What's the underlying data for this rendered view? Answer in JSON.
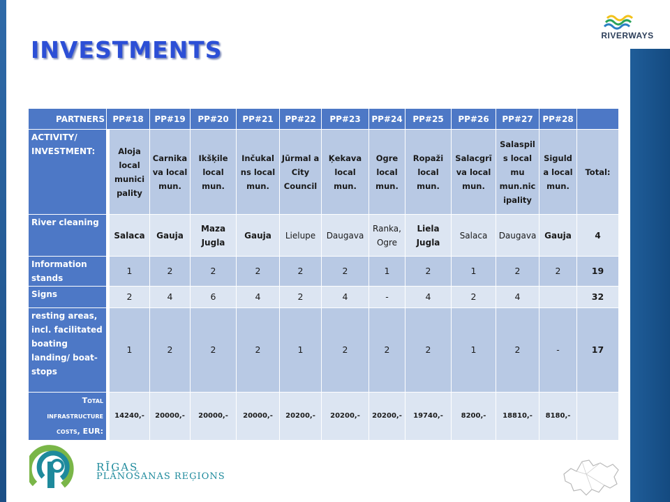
{
  "title": "INVESTMENTS",
  "brand_logo": {
    "icon": "riverways-wave-icon",
    "text": "RIVERWAYS"
  },
  "table": {
    "header": {
      "label": "PARTNERS",
      "partners": [
        "PP#18",
        "PP#19",
        "PP#20",
        "PP#21",
        "PP#22",
        "PP#23",
        "PP#24",
        "PP#25",
        "PP#26",
        "PP#27",
        "PP#28"
      ]
    },
    "activity": {
      "label": "ACTIVITY/ INVESTMENT:",
      "values": [
        "Aloja local munici pality",
        "Carnika va local mun.",
        "Ikšķile local mun.",
        "Inčukal ns local mun.",
        "Jūrmal a City Council",
        "Ķekava local mun.",
        "Ogre local mun.",
        "Ropaži local mun.",
        "Salacgrī va local mun.",
        "Salaspil s local mu mun.nic ipality",
        "Siguld a local mun."
      ],
      "total_label": "Total:"
    },
    "river_cleaning": {
      "label": "River cleaning",
      "values": [
        "Salaca",
        "Gauja",
        "Maza Jugla",
        "Gauja",
        "Lielupe",
        "Daugava",
        "Ranka, Ogre",
        "Liela Jugla",
        "Salaca",
        "Daugava",
        "Gauja"
      ],
      "total": "4"
    },
    "info_stands": {
      "label": "Information stands",
      "values": [
        "1",
        "2",
        "2",
        "2",
        "2",
        "2",
        "1",
        "2",
        "1",
        "2",
        "2"
      ],
      "total": "19"
    },
    "signs": {
      "label": "Signs",
      "values": [
        "2",
        "4",
        "6",
        "4",
        "2",
        "4",
        "-",
        "4",
        "2",
        "4",
        ""
      ],
      "total": "32"
    },
    "resting_areas": {
      "label": "resting areas, incl. facilitated boating landing/ boat-stops",
      "values": [
        "1",
        "2",
        "2",
        "2",
        "1",
        "2",
        "2",
        "2",
        "1",
        "2",
        "-"
      ],
      "total": "17"
    },
    "total_costs": {
      "label_main": "Total infrastructure costs",
      "label_suffix": ", EUR:",
      "values": [
        "14240,-",
        "20000,-",
        "20000,-",
        "20000,-",
        "20200,-",
        "20200,-",
        "20200,-",
        "19740,-",
        "8200,-",
        "18810,-",
        "8180,-"
      ],
      "total": ""
    }
  },
  "footer_logo": {
    "icon": "rpr-logo-icon",
    "line1": "RĪGAS",
    "line2": "PLĀNOŠANAS REĢIONS"
  },
  "region_map": {
    "icon": "region-map-outline-icon"
  },
  "colors": {
    "header_blue": "#4d78c6",
    "title_blue": "#2c4fd6",
    "cell_dark": "#b8c9e4",
    "cell_light": "#dce5f2",
    "teal": "#1e8a9c"
  }
}
